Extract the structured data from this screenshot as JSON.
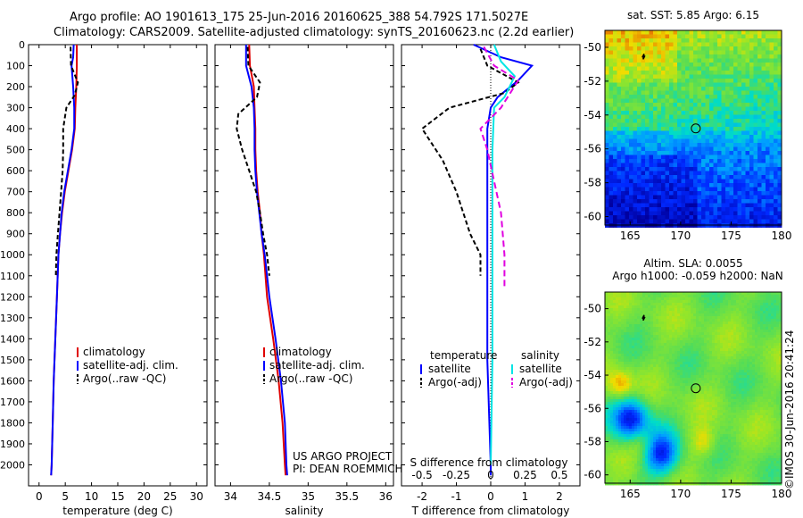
{
  "header": {
    "line1": "Argo profile: AO 1901613_175 25-Jun-2016 20160625_388 54.792S 171.5027E",
    "line2": "Climatology: CARS2009. Satellite-adjusted climatology: synTS_20160623.nc (2.2d earlier)"
  },
  "colors": {
    "climatology": "#e00000",
    "satellite": "#0000ff",
    "argo": "#000000",
    "salinity_satellite": "#00e5e5",
    "salinity_argo": "#e000e0"
  },
  "chart_data": [
    {
      "type": "line",
      "id": "temperature",
      "xlabel": "temperature (deg C)",
      "xlim": [
        -2,
        32
      ],
      "xticks": [
        0,
        5,
        10,
        15,
        20,
        25,
        30
      ],
      "ylim": [
        2100,
        0
      ],
      "yticks": [
        0,
        100,
        200,
        300,
        400,
        500,
        600,
        700,
        800,
        900,
        1000,
        1100,
        1200,
        1300,
        1400,
        1500,
        1600,
        1700,
        1800,
        1900,
        2000
      ],
      "legend": [
        "climatology",
        "satellite-adj. clim.",
        "Argo(..raw -QC)"
      ],
      "series": [
        {
          "name": "climatology",
          "color": "#e00000",
          "dash": "",
          "points": [
            [
              7.2,
              0
            ],
            [
              7.2,
              100
            ],
            [
              7.1,
              200
            ],
            [
              6.9,
              300
            ],
            [
              6.8,
              400
            ],
            [
              6.3,
              500
            ],
            [
              5.6,
              600
            ],
            [
              4.9,
              700
            ],
            [
              4.4,
              800
            ],
            [
              4.0,
              900
            ],
            [
              3.7,
              1000
            ],
            [
              3.4,
              1200
            ],
            [
              3.1,
              1400
            ],
            [
              2.8,
              1600
            ],
            [
              2.6,
              1800
            ],
            [
              2.4,
              2000
            ],
            [
              2.3,
              2050
            ]
          ]
        },
        {
          "name": "satellite-adj. clim.",
          "color": "#0000ff",
          "dash": "",
          "points": [
            [
              6.6,
              0
            ],
            [
              6.5,
              60
            ],
            [
              6.2,
              100
            ],
            [
              6.5,
              200
            ],
            [
              6.7,
              300
            ],
            [
              6.7,
              400
            ],
            [
              6.2,
              500
            ],
            [
              5.5,
              600
            ],
            [
              4.8,
              700
            ],
            [
              4.3,
              800
            ],
            [
              4.0,
              900
            ],
            [
              3.7,
              1000
            ],
            [
              3.4,
              1200
            ],
            [
              3.1,
              1400
            ],
            [
              2.8,
              1600
            ],
            [
              2.6,
              1800
            ],
            [
              2.4,
              2000
            ],
            [
              2.3,
              2050
            ]
          ]
        },
        {
          "name": "Argo(..raw -QC)",
          "color": "#000000",
          "dash": "5,3",
          "points": [
            [
              6.0,
              10
            ],
            [
              6.1,
              100
            ],
            [
              7.4,
              180
            ],
            [
              6.8,
              240
            ],
            [
              5.2,
              300
            ],
            [
              4.6,
              400
            ],
            [
              4.6,
              500
            ],
            [
              4.5,
              600
            ],
            [
              4.2,
              700
            ],
            [
              3.9,
              800
            ],
            [
              3.6,
              900
            ],
            [
              3.3,
              1000
            ],
            [
              3.2,
              1100
            ]
          ]
        }
      ]
    },
    {
      "type": "line",
      "id": "salinity",
      "xlabel": "salinity",
      "xlim": [
        33.8,
        36.1
      ],
      "xticks": [
        34,
        34.5,
        35,
        35.5,
        36
      ],
      "ylim": [
        2100,
        0
      ],
      "legend": [
        "climatology",
        "satellite-adj. clim.",
        "Argo(..raw -QC)"
      ],
      "annotation": [
        "US ARGO PROJECT",
        "PI: DEAN ROEMMICH"
      ],
      "series": [
        {
          "name": "climatology",
          "color": "#e00000",
          "dash": "",
          "points": [
            [
              34.24,
              0
            ],
            [
              34.25,
              100
            ],
            [
              34.3,
              200
            ],
            [
              34.31,
              300
            ],
            [
              34.32,
              400
            ],
            [
              34.32,
              500
            ],
            [
              34.33,
              600
            ],
            [
              34.35,
              700
            ],
            [
              34.38,
              800
            ],
            [
              34.4,
              900
            ],
            [
              34.43,
              1000
            ],
            [
              34.47,
              1200
            ],
            [
              34.55,
              1400
            ],
            [
              34.62,
              1600
            ],
            [
              34.67,
              1800
            ],
            [
              34.7,
              2000
            ],
            [
              34.71,
              2050
            ]
          ]
        },
        {
          "name": "satellite-adj. clim.",
          "color": "#0000ff",
          "dash": "",
          "points": [
            [
              34.2,
              0
            ],
            [
              34.2,
              100
            ],
            [
              34.27,
              200
            ],
            [
              34.3,
              300
            ],
            [
              34.31,
              400
            ],
            [
              34.31,
              500
            ],
            [
              34.32,
              600
            ],
            [
              34.34,
              700
            ],
            [
              34.37,
              800
            ],
            [
              34.4,
              900
            ],
            [
              34.44,
              1000
            ],
            [
              34.5,
              1200
            ],
            [
              34.58,
              1400
            ],
            [
              34.65,
              1600
            ],
            [
              34.7,
              1800
            ],
            [
              34.72,
              2000
            ],
            [
              34.73,
              2050
            ]
          ]
        },
        {
          "name": "Argo(..raw -QC)",
          "color": "#000000",
          "dash": "5,3",
          "points": [
            [
              34.22,
              10
            ],
            [
              34.23,
              100
            ],
            [
              34.38,
              180
            ],
            [
              34.34,
              250
            ],
            [
              34.1,
              330
            ],
            [
              34.08,
              400
            ],
            [
              34.15,
              500
            ],
            [
              34.24,
              600
            ],
            [
              34.33,
              700
            ],
            [
              34.38,
              800
            ],
            [
              34.42,
              900
            ],
            [
              34.47,
              1000
            ],
            [
              34.5,
              1100
            ]
          ]
        }
      ]
    },
    {
      "type": "line",
      "id": "differences",
      "xlabel": "T difference from climatology",
      "xlim": [
        -2.6,
        2.6
      ],
      "xticks": [
        -2,
        -1,
        0,
        1,
        2
      ],
      "xlabel_top": "S difference from climatology",
      "xticks_top": [
        "-0.5",
        "-0.25",
        "0",
        "0.25",
        "0.5"
      ],
      "ylim": [
        2100,
        0
      ],
      "legend": {
        "temperature_title": "temperature",
        "salinity_title": "salinity",
        "items": [
          "satellite",
          "Argo(-adj)",
          "satellite",
          "Argo(-adj)"
        ]
      },
      "series": [
        {
          "name": "satellite",
          "group": "temperature",
          "color": "#0000ff",
          "dash": "",
          "points": [
            [
              -0.5,
              0
            ],
            [
              0.3,
              60
            ],
            [
              1.2,
              100
            ],
            [
              0.8,
              170
            ],
            [
              0.2,
              250
            ],
            [
              0.0,
              300
            ],
            [
              -0.1,
              400
            ],
            [
              -0.1,
              500
            ],
            [
              -0.1,
              700
            ],
            [
              -0.1,
              1000
            ],
            [
              -0.1,
              1500
            ],
            [
              0.0,
              2000
            ],
            [
              0.0,
              2050
            ]
          ]
        },
        {
          "name": "Argo(-adj)",
          "group": "temperature",
          "color": "#000000",
          "dash": "5,3",
          "points": [
            [
              -0.3,
              20
            ],
            [
              -0.1,
              100
            ],
            [
              0.8,
              180
            ],
            [
              0.4,
              230
            ],
            [
              -1.2,
              300
            ],
            [
              -2.0,
              400
            ],
            [
              -1.4,
              550
            ],
            [
              -1.0,
              700
            ],
            [
              -0.6,
              900
            ],
            [
              -0.3,
              1000
            ],
            [
              -0.3,
              1100
            ]
          ]
        },
        {
          "name": "satellite",
          "group": "salinity",
          "color": "#00e5e5",
          "dash": "",
          "points": [
            [
              0.1,
              0
            ],
            [
              0.3,
              80
            ],
            [
              0.7,
              150
            ],
            [
              0.4,
              250
            ],
            [
              0.1,
              300
            ],
            [
              0.05,
              500
            ],
            [
              0.05,
              1000
            ],
            [
              0.05,
              1500
            ],
            [
              0.0,
              2000
            ]
          ]
        },
        {
          "name": "Argo(-adj)",
          "group": "salinity",
          "color": "#e000e0",
          "dash": "7,4",
          "points": [
            [
              -0.2,
              10
            ],
            [
              0.1,
              100
            ],
            [
              0.8,
              170
            ],
            [
              0.3,
              300
            ],
            [
              -0.3,
              400
            ],
            [
              -0.1,
              500
            ],
            [
              0.1,
              650
            ],
            [
              0.3,
              800
            ],
            [
              0.4,
              1000
            ],
            [
              0.4,
              1150
            ]
          ]
        }
      ]
    },
    {
      "type": "heatmap",
      "id": "sst-map",
      "title": "sat. SST: 5.85  Argo: 6.15",
      "xlim": [
        162.5,
        180
      ],
      "xticks": [
        165,
        170,
        175,
        180
      ],
      "ylim": [
        -60.5,
        -49
      ],
      "yticks": [
        -50,
        -52,
        -54,
        -56,
        -58,
        -60
      ],
      "profile_marker": [
        171.5,
        -54.79
      ]
    },
    {
      "type": "heatmap",
      "id": "sla-map",
      "title": [
        "Altim. SLA: 0.0055",
        "Argo h1000: -0.059  h2000: NaN"
      ],
      "xlim": [
        162.5,
        180
      ],
      "xticks": [
        165,
        170,
        175,
        180
      ],
      "ylim": [
        -60.5,
        -49
      ],
      "yticks": [
        -50,
        -52,
        -54,
        -56,
        -58,
        -60
      ],
      "profile_marker": [
        171.5,
        -54.79
      ]
    }
  ],
  "footer": {
    "credit": "©IMOS 30-Jun-2016 20:41:24"
  }
}
